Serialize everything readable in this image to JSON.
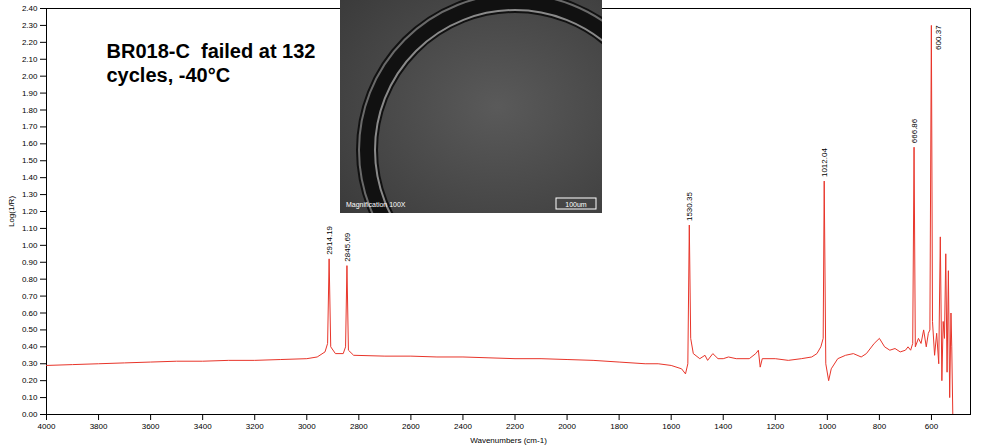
{
  "chart_data": {
    "type": "line",
    "title": "BR018-C  failed at 132 cycles, -40°C",
    "x_label": "Wavenumbers (cm-1)",
    "y_label": "Log(1/R)",
    "color": "#e8352a",
    "grid": false,
    "xlim": [
      4000,
      450
    ],
    "xticks": [
      4000,
      3800,
      3600,
      3400,
      3200,
      3000,
      2800,
      2600,
      2400,
      2200,
      2000,
      1800,
      1600,
      1400,
      1200,
      1000,
      800,
      600
    ],
    "ylim": [
      0,
      2.4
    ],
    "yticks": [
      {
        "value": 0,
        "label": "0.00"
      },
      {
        "value": 0.1,
        "label": "0.10"
      },
      {
        "value": 0.2,
        "label": "0.20"
      },
      {
        "value": 0.3,
        "label": "0.30"
      },
      {
        "value": 0.4,
        "label": "0.40"
      },
      {
        "value": 0.5,
        "label": "0.50"
      },
      {
        "value": 0.6,
        "label": "0.60"
      },
      {
        "value": 0.7,
        "label": "0.70"
      },
      {
        "value": 0.8,
        "label": "0.80"
      },
      {
        "value": 0.9,
        "label": "0.90"
      },
      {
        "value": 1,
        "label": "1.00"
      },
      {
        "value": 1.1,
        "label": "1.10"
      },
      {
        "value": 1.2,
        "label": "1.20"
      },
      {
        "value": 1.3,
        "label": "1.30"
      },
      {
        "value": 1.4,
        "label": "1.40"
      },
      {
        "value": 1.5,
        "label": "1.50"
      },
      {
        "value": 1.6,
        "label": "1.60"
      },
      {
        "value": 1.7,
        "label": "1.70"
      },
      {
        "value": 1.8,
        "label": "1.80"
      },
      {
        "value": 1.9,
        "label": "1.90"
      },
      {
        "value": 2,
        "label": "2.00"
      },
      {
        "value": 2.1,
        "label": "2.10"
      },
      {
        "value": 2.2,
        "label": "2.20"
      },
      {
        "value": 2.3,
        "label": "2.30"
      },
      {
        "value": 2.4,
        "label": "2.40"
      }
    ],
    "x": [
      4000,
      3900,
      3800,
      3700,
      3600,
      3500,
      3400,
      3300,
      3200,
      3100,
      3000,
      2960,
      2930,
      2920,
      2914.19,
      2908,
      2890,
      2860,
      2851,
      2845.69,
      2840,
      2820,
      2700,
      2600,
      2500,
      2400,
      2300,
      2200,
      2100,
      2000,
      1900,
      1800,
      1700,
      1650,
      1600,
      1560,
      1545,
      1536,
      1530.35,
      1525,
      1515,
      1490,
      1470,
      1460,
      1440,
      1420,
      1400,
      1380,
      1350,
      1300,
      1275,
      1265,
      1258,
      1250,
      1200,
      1150,
      1100,
      1060,
      1040,
      1025,
      1016,
      1012.04,
      1006,
      995,
      985,
      960,
      930,
      900,
      870,
      850,
      820,
      800,
      780,
      760,
      740,
      720,
      700,
      690,
      680,
      672,
      666.86,
      662,
      650,
      640,
      630,
      620,
      612,
      606,
      600.37,
      596,
      588,
      580,
      572,
      566,
      560,
      555,
      550,
      545,
      540,
      535,
      530,
      525,
      522,
      518
    ],
    "values": [
      0.29,
      0.295,
      0.3,
      0.305,
      0.31,
      0.315,
      0.315,
      0.32,
      0.32,
      0.325,
      0.33,
      0.34,
      0.37,
      0.42,
      0.92,
      0.4,
      0.36,
      0.36,
      0.4,
      0.88,
      0.38,
      0.35,
      0.345,
      0.345,
      0.34,
      0.34,
      0.335,
      0.33,
      0.33,
      0.325,
      0.32,
      0.31,
      0.3,
      0.3,
      0.29,
      0.27,
      0.24,
      0.3,
      1.12,
      0.45,
      0.36,
      0.33,
      0.35,
      0.32,
      0.36,
      0.33,
      0.33,
      0.34,
      0.33,
      0.33,
      0.36,
      0.38,
      0.28,
      0.33,
      0.33,
      0.32,
      0.33,
      0.34,
      0.36,
      0.4,
      0.45,
      1.38,
      0.3,
      0.2,
      0.27,
      0.33,
      0.35,
      0.36,
      0.34,
      0.36,
      0.42,
      0.45,
      0.4,
      0.38,
      0.39,
      0.37,
      0.38,
      0.4,
      0.38,
      0.42,
      1.58,
      0.4,
      0.45,
      0.42,
      0.5,
      0.4,
      0.48,
      0.5,
      2.3,
      0.55,
      0.35,
      0.48,
      0.3,
      1.05,
      0.2,
      0.55,
      0.45,
      0.95,
      0.25,
      0.85,
      0.1,
      0.6,
      0.4,
      0
    ],
    "peak_labels": [
      2914.19,
      2845.69,
      1530.35,
      1012.04,
      666.86,
      600.37
    ],
    "inset": {
      "caption": "Magnification 100X",
      "scale_bar": "100um"
    }
  }
}
